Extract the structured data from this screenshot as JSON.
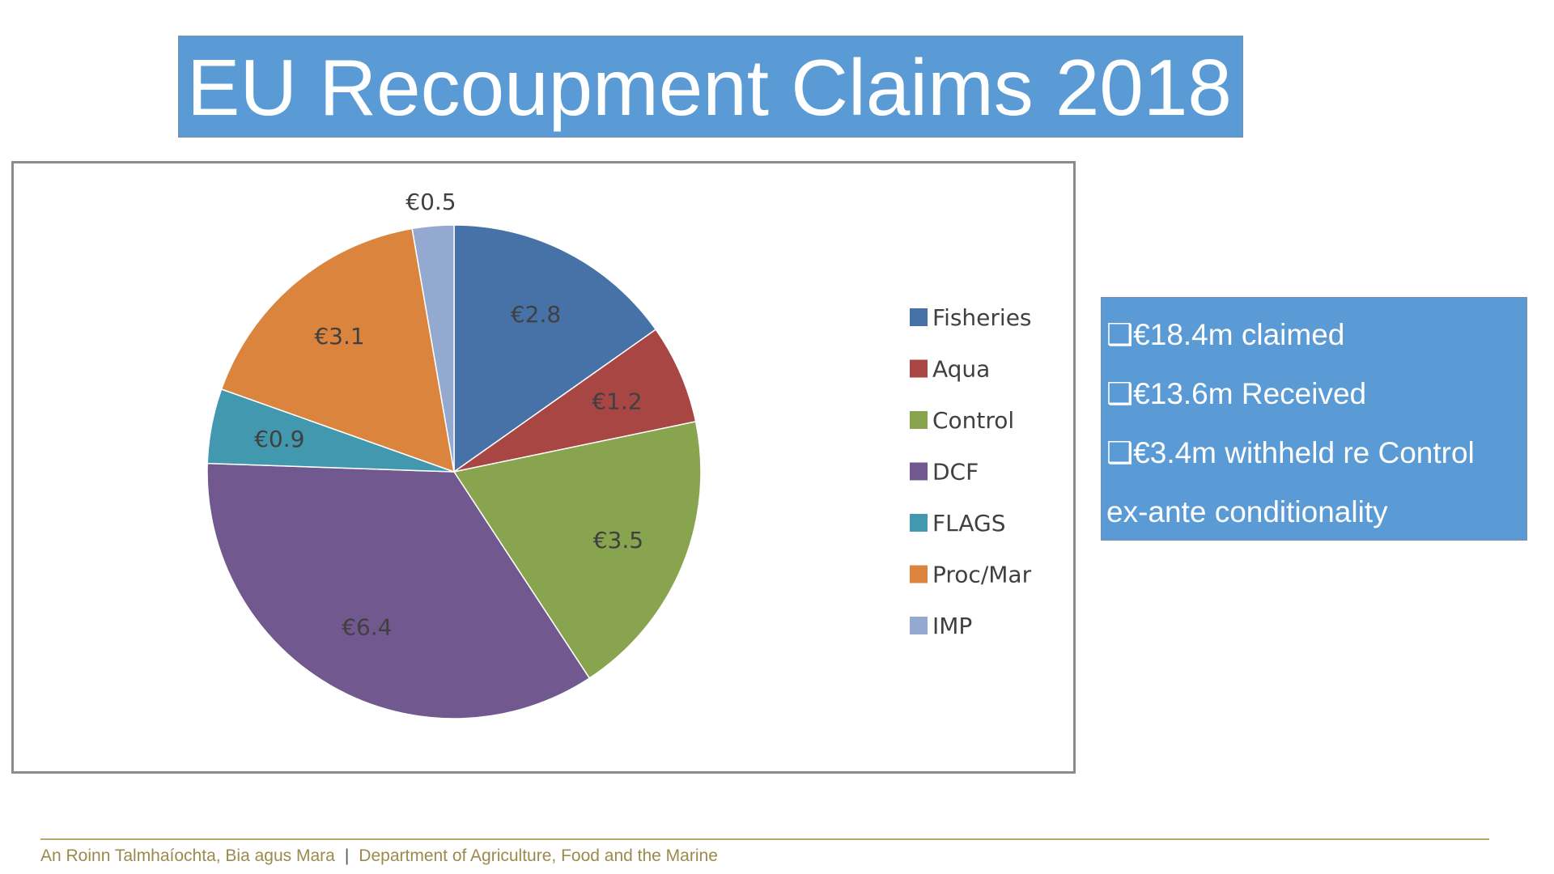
{
  "title": "EU Recoupment Claims 2018",
  "chart_data": {
    "type": "pie",
    "title": "",
    "slices": [
      {
        "label": "Fisheries",
        "value": 2.8,
        "data_label": "€2.8",
        "color": "#4672A8"
      },
      {
        "label": "Aqua",
        "value": 1.2,
        "data_label": "€1.2",
        "color": "#A84644"
      },
      {
        "label": "Control",
        "value": 3.5,
        "data_label": "€3.5",
        "color": "#88A44E"
      },
      {
        "label": "DCF",
        "value": 6.4,
        "data_label": "€6.4",
        "color": "#71588F"
      },
      {
        "label": "FLAGS",
        "value": 0.9,
        "data_label": "€0.9",
        "color": "#4198AF"
      },
      {
        "label": "Proc/Mar",
        "value": 3.1,
        "data_label": "€3.1",
        "color": "#DB843D"
      },
      {
        "label": "IMP",
        "value": 0.5,
        "data_label": "€0.5",
        "color": "#93A9D0"
      }
    ],
    "legend_position": "right"
  },
  "info": {
    "line1": "❑€18.4m claimed",
    "line2": "❑€13.6m Received",
    "line3": "❑€3.4m withheld re Control",
    "line4": "ex-ante conditionality"
  },
  "footer": {
    "irish": "An Roinn Talmhaíochta, Bia agus Mara",
    "separator": "|",
    "english": "Department of Agriculture, Food and the Marine"
  }
}
